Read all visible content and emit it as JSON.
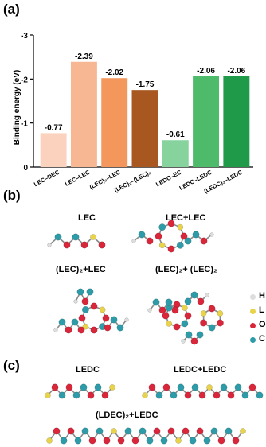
{
  "panels": {
    "a": "(a)",
    "b": "(b)",
    "c": "(c)"
  },
  "chart_data": {
    "type": "bar",
    "ylabel": "Binding energy (eV)",
    "ylim": [
      0,
      -3
    ],
    "yticks": [
      "0",
      "-1",
      "-2",
      "-3"
    ],
    "categories": [
      "LEC–DEC",
      "LEC–LEC",
      "(LEC)₂–LEC",
      "(LEC)₂–(LEC)₂",
      "LEDC–EC",
      "LEDC–LEDC",
      "(LEDC)₂–LEDC"
    ],
    "values": [
      -0.77,
      -2.39,
      -2.02,
      -1.75,
      -0.61,
      -2.06,
      -2.06
    ],
    "value_labels": [
      "-0.77",
      "-2.39",
      "-2.02",
      "-1.75",
      "-0.61",
      "-2.06",
      "-2.06"
    ],
    "colors": [
      "#FAD2BD",
      "#F7B792",
      "#F4975C",
      "#A7571F",
      "#86D39E",
      "#4DBB6A",
      "#1E9A48"
    ]
  },
  "molecules_b": {
    "lec": "LEC",
    "lec_lec": "LEC+LEC",
    "lec2_lec": "(LEC)₂+LEC",
    "lec2_lec2": "(LEC)₂+ (LEC)₂"
  },
  "molecules_c": {
    "ledc": "LEDC",
    "ledc_ledc": "LEDC+LEDC",
    "ldec2_ledc": "(LDEC)₂+LEDC"
  },
  "legend": [
    {
      "label": "H",
      "color": "#DDDDDD"
    },
    {
      "label": "L",
      "color": "#E8D34A"
    },
    {
      "label": "O",
      "color": "#D9263B"
    },
    {
      "label": "C",
      "color": "#2E9BA8"
    }
  ]
}
